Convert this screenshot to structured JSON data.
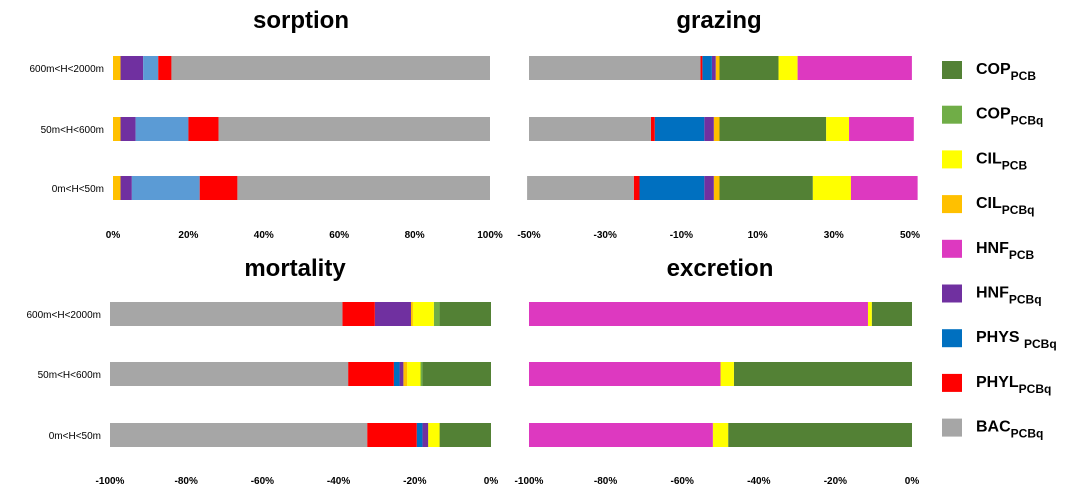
{
  "chart_data": [
    {
      "type": "bar",
      "orientation": "horizontal",
      "stacked": true,
      "title": "sorption",
      "categories": [
        "0m<H<50m",
        "50m<H<600m",
        "600m<H<2000m"
      ],
      "xlim": [
        0,
        100
      ],
      "xticks": [
        "0%",
        "20%",
        "40%",
        "60%",
        "80%",
        "100%"
      ],
      "series": [
        {
          "name": "CIL_PCBq",
          "values": [
            2,
            2,
            2
          ]
        },
        {
          "name": "HNF_PCBq",
          "values": [
            3,
            4,
            6
          ]
        },
        {
          "name": "PHYS_PCBq",
          "values": [
            18,
            14,
            4
          ]
        },
        {
          "name": "PHYL_PCBq",
          "values": [
            10,
            8,
            3.5
          ]
        },
        {
          "name": "BAC_PCBq",
          "values": [
            67,
            72,
            84.5
          ]
        }
      ]
    },
    {
      "type": "bar",
      "orientation": "horizontal",
      "stacked": true,
      "title": "grazing",
      "categories": [
        "0m<H<50m",
        "50m<H<600m",
        "600m<H<2000m"
      ],
      "xlim": [
        -50,
        50
      ],
      "xticks": [
        "-50%",
        "-30%",
        "-10%",
        "10%",
        "30%",
        "50%"
      ],
      "series": [
        {
          "name": "COP_PCB",
          "values": [
            24.5,
            28,
            15.5
          ]
        },
        {
          "name": "CIL_PCB",
          "values": [
            10,
            6,
            5
          ]
        },
        {
          "name": "HNF_PCB",
          "values": [
            17.5,
            17,
            30
          ]
        },
        {
          "name": "CIL_PCBq",
          "values": [
            -1.5,
            -1.5,
            -1
          ]
        },
        {
          "name": "HNF_PCBq",
          "values": [
            -2.5,
            -2.5,
            -1
          ]
        },
        {
          "name": "PHYS_PCBq",
          "values": [
            -17,
            -13,
            -2.5
          ]
        },
        {
          "name": "PHYL_PCBq",
          "values": [
            -1.5,
            -1,
            -0.5
          ]
        },
        {
          "name": "BAC_PCBq",
          "values": [
            -28,
            -32,
            -45
          ]
        }
      ]
    },
    {
      "type": "bar",
      "orientation": "horizontal",
      "stacked": true,
      "title": "mortality",
      "categories": [
        "0m<H<50m",
        "50m<H<600m",
        "600m<H<2000m"
      ],
      "xlim": [
        -100,
        0
      ],
      "xticks": [
        "-100%",
        "-80%",
        "-60%",
        "-40%",
        "-20%",
        "0%"
      ],
      "series": [
        {
          "name": "COP_PCB",
          "values": [
            -13.5,
            -18,
            -13.5
          ]
        },
        {
          "name": "COP_PCBq",
          "values": [
            0,
            -0.5,
            -1.5
          ]
        },
        {
          "name": "CIL_PCB",
          "values": [
            -3,
            -3.5,
            -5.5
          ]
        },
        {
          "name": "CIL_PCBq",
          "values": [
            0,
            -1,
            -0.5
          ]
        },
        {
          "name": "HNF_PCBq",
          "values": [
            -1.5,
            -1,
            -9.5
          ]
        },
        {
          "name": "PHYS_PCBq",
          "values": [
            -1.5,
            -1.5,
            0
          ]
        },
        {
          "name": "PHYL_PCBq",
          "values": [
            -13,
            -12,
            -8.5
          ]
        },
        {
          "name": "BAC_PCBq",
          "values": [
            -67.5,
            -62.5,
            -61
          ]
        }
      ]
    },
    {
      "type": "bar",
      "orientation": "horizontal",
      "stacked": true,
      "title": "excretion",
      "categories": [
        "0m<H<50m",
        "50m<H<600m",
        "600m<H<2000m"
      ],
      "xlim": [
        -100,
        0
      ],
      "xticks": [
        "-100%",
        "-80%",
        "-60%",
        "-40%",
        "-20%",
        "0%"
      ],
      "series": [
        {
          "name": "COP_PCB",
          "values": [
            -48,
            -46.5,
            -10.5
          ]
        },
        {
          "name": "CIL_PCB",
          "values": [
            -4,
            -3.5,
            -1
          ]
        },
        {
          "name": "HNF_PCB",
          "values": [
            -48,
            -50,
            -88.5
          ]
        }
      ]
    }
  ],
  "legend": {
    "placement": "right",
    "items": [
      {
        "main": "COP",
        "sub": "PCB",
        "color": "#538135"
      },
      {
        "main": "COP",
        "sub": "PCBq",
        "color": "#70ad47"
      },
      {
        "main": "CIL",
        "sub": "PCB",
        "color": "#ffff00"
      },
      {
        "main": "CIL",
        "sub": "PCBq",
        "color": "#ffc000"
      },
      {
        "main": "HNF",
        "sub": "PCB",
        "color": "#dd39c0"
      },
      {
        "main": "HNF",
        "sub": "PCBq",
        "color": "#7030a0"
      },
      {
        "main": "PHYS ",
        "sub": "PCBq",
        "color": "#0070c0"
      },
      {
        "main": "PHYL",
        "sub": "PCBq",
        "color": "#ff0000"
      },
      {
        "main": "BAC",
        "sub": "PCBq",
        "color": "#a6a6a6"
      }
    ]
  },
  "colors": {
    "COP_PCB": "#538135",
    "COP_PCBq": "#70ad47",
    "CIL_PCB": "#ffff00",
    "CIL_PCBq": "#ffc000",
    "HNF_PCB": "#dd39c0",
    "HNF_PCBq": "#7030a0",
    "PHYS_PCBq": "#0070c0",
    "PHYS_PCBq_sorption": "#5b9bd5",
    "PHYL_PCBq": "#ff0000",
    "BAC_PCBq": "#a6a6a6"
  }
}
